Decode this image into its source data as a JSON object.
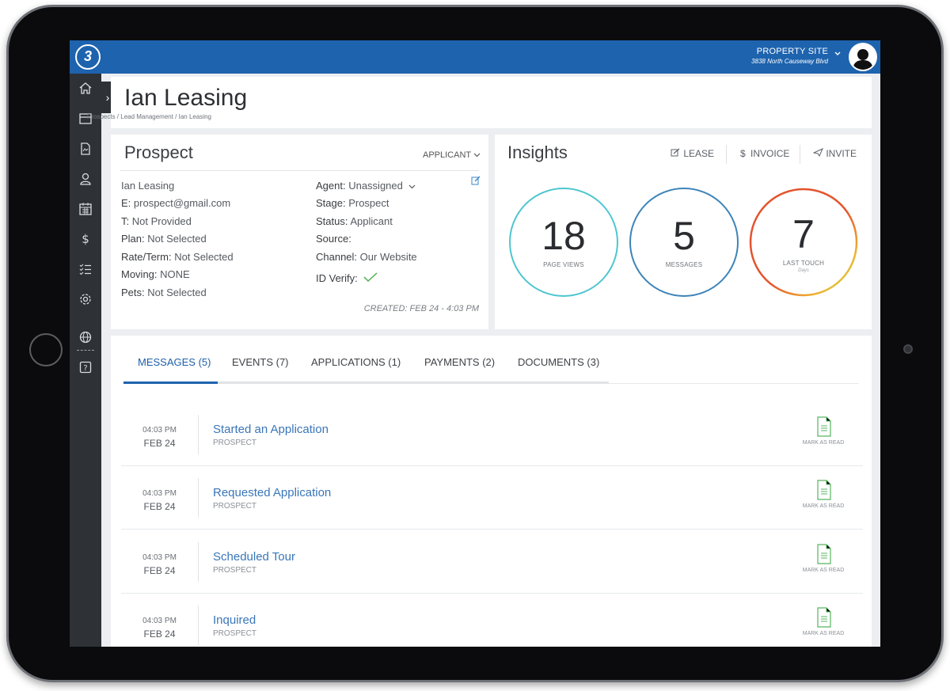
{
  "app": {
    "logo_text": "3"
  },
  "property": {
    "name": "PROPERTY SITE",
    "address": "3838 North Causeway Blvd"
  },
  "sidebar": {
    "items": [
      {
        "icon": "home-icon"
      },
      {
        "icon": "window-icon"
      },
      {
        "icon": "document-icon"
      },
      {
        "icon": "user-icon"
      },
      {
        "icon": "calendar-icon"
      },
      {
        "icon": "dollar-icon"
      },
      {
        "icon": "checklist-icon"
      },
      {
        "icon": "gear-icon"
      },
      {
        "icon": "globe-icon"
      },
      {
        "icon": "help-icon"
      }
    ]
  },
  "header": {
    "title": "Ian Leasing",
    "breadcrumb": "Prospects  /  Lead Management  /  Ian Leasing"
  },
  "prospect": {
    "title": "Prospect",
    "dropdown_label": "APPLICANT",
    "left_fields": [
      {
        "label": "",
        "value": "Ian Leasing"
      },
      {
        "label": "E: ",
        "value": "prospect@gmail.com"
      },
      {
        "label": "T: ",
        "value": "Not Provided"
      },
      {
        "label": "Plan: ",
        "value": "Not Selected"
      },
      {
        "label": "Rate/Term: ",
        "value": "Not Selected"
      },
      {
        "label": "Moving: ",
        "value": "NONE"
      },
      {
        "label": "Pets: ",
        "value": "Not Selected"
      }
    ],
    "right_fields": [
      {
        "label": "Agent: ",
        "value": "Unassigned"
      },
      {
        "label": "Stage: ",
        "value": "Prospect"
      },
      {
        "label": "Status: ",
        "value": "Applicant"
      },
      {
        "label": "Source: ",
        "value": ""
      },
      {
        "label": "Channel: ",
        "value": "Our Website"
      },
      {
        "label": "ID Verify: ",
        "value": ""
      }
    ],
    "created": "CREATED: FEB 24 - 4:03 PM"
  },
  "insights": {
    "title": "Insights",
    "actions": [
      {
        "label": "LEASE",
        "icon": "lease-icon"
      },
      {
        "label": "INVOICE",
        "icon": "dollar-icon"
      },
      {
        "label": "INVITE",
        "icon": "send-icon"
      }
    ],
    "metrics": [
      {
        "value": "18",
        "label": "PAGE VIEWS",
        "sub": "",
        "color": "#4ec6d0"
      },
      {
        "value": "5",
        "label": "MESSAGES",
        "sub": "",
        "color": "#3d84b8"
      },
      {
        "value": "7",
        "label": "LAST TOUCH",
        "sub": "Days",
        "color": "#e4532c"
      }
    ]
  },
  "tabs": [
    {
      "label": "MESSAGES (5)",
      "active": true
    },
    {
      "label": "EVENTS (7)",
      "active": false
    },
    {
      "label": "APPLICATIONS (1)",
      "active": false
    },
    {
      "label": "PAYMENTS (2)",
      "active": false
    },
    {
      "label": "DOCUMENTS (3)",
      "active": false
    }
  ],
  "messages": [
    {
      "time": "04:03 PM",
      "date": "FEB 24",
      "title": "Started an Application",
      "sub": "PROSPECT",
      "action": "MARK AS READ"
    },
    {
      "time": "04:03 PM",
      "date": "FEB 24",
      "title": "Requested Application",
      "sub": "PROSPECT",
      "action": "MARK AS READ"
    },
    {
      "time": "04:03 PM",
      "date": "FEB 24",
      "title": "Scheduled Tour",
      "sub": "PROSPECT",
      "action": "MARK AS READ"
    },
    {
      "time": "04:03 PM",
      "date": "FEB 24",
      "title": "Inquired",
      "sub": "PROSPECT",
      "action": "MARK AS READ"
    }
  ],
  "colors": {
    "brand": "#1e63ae",
    "sidebar": "#2e3237",
    "link": "#3a76b8",
    "success": "#4caf50",
    "doc_icon": "#57b560"
  }
}
